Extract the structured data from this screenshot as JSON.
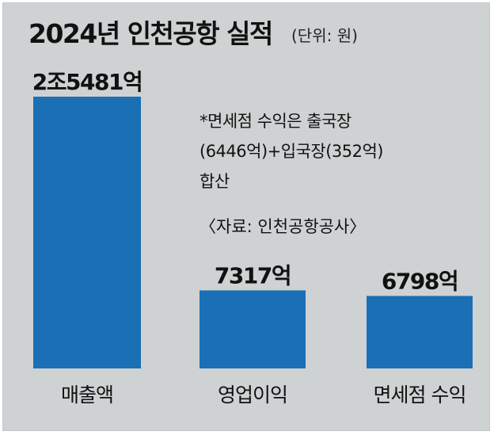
{
  "chart_data": {
    "type": "bar",
    "title": "2024년 인천공항 실적",
    "unit_note": "(단위: 원)",
    "categories": [
      "매출액",
      "영업이익",
      "면세점 수익"
    ],
    "values": [
      25481,
      7317,
      6798
    ],
    "value_labels": [
      "2조5481억",
      "7317억",
      "6798억"
    ],
    "value_unit": "억원",
    "annotation_lines": [
      "*면세점 수익은 출국장",
      "(6446억)+입국장(352억)",
      "합산"
    ],
    "source": "〈자료: 인천공항공사〉",
    "bar_color": "#1a6fb5",
    "ylim": [
      0,
      25481
    ],
    "grid": false,
    "legend": "none"
  }
}
